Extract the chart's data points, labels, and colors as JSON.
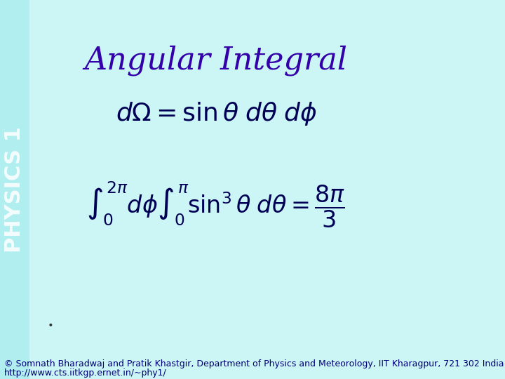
{
  "title": "Angular Integral",
  "title_color": "#3300aa",
  "title_fontsize": 32,
  "bg_color": "#ccf5f5",
  "sidebar_text": "PHYSICS 1",
  "sidebar_color": "#ffffff",
  "sidebar_bg": "#b0eef0",
  "formula1": "d\\Omega = \\sin\\theta\\, d\\theta\\, d\\phi",
  "formula2": "\\int_0^{2\\pi} d\\phi \\int_0^{\\pi} \\sin^3\\theta\\, d\\theta = \\frac{8\\pi}{3}",
  "formula_color": "#000055",
  "footer_line1": "\\copyright  Somnath Bharadwaj and Pratik Khastgir, Department of Physics and Meteorology, IIT Kharagpur, 721 302 India",
  "footer_line2": "http://www.cts.iitkgp.ernet.in/~phy1/",
  "footer_color": "#000077",
  "footer_fontsize": 9
}
